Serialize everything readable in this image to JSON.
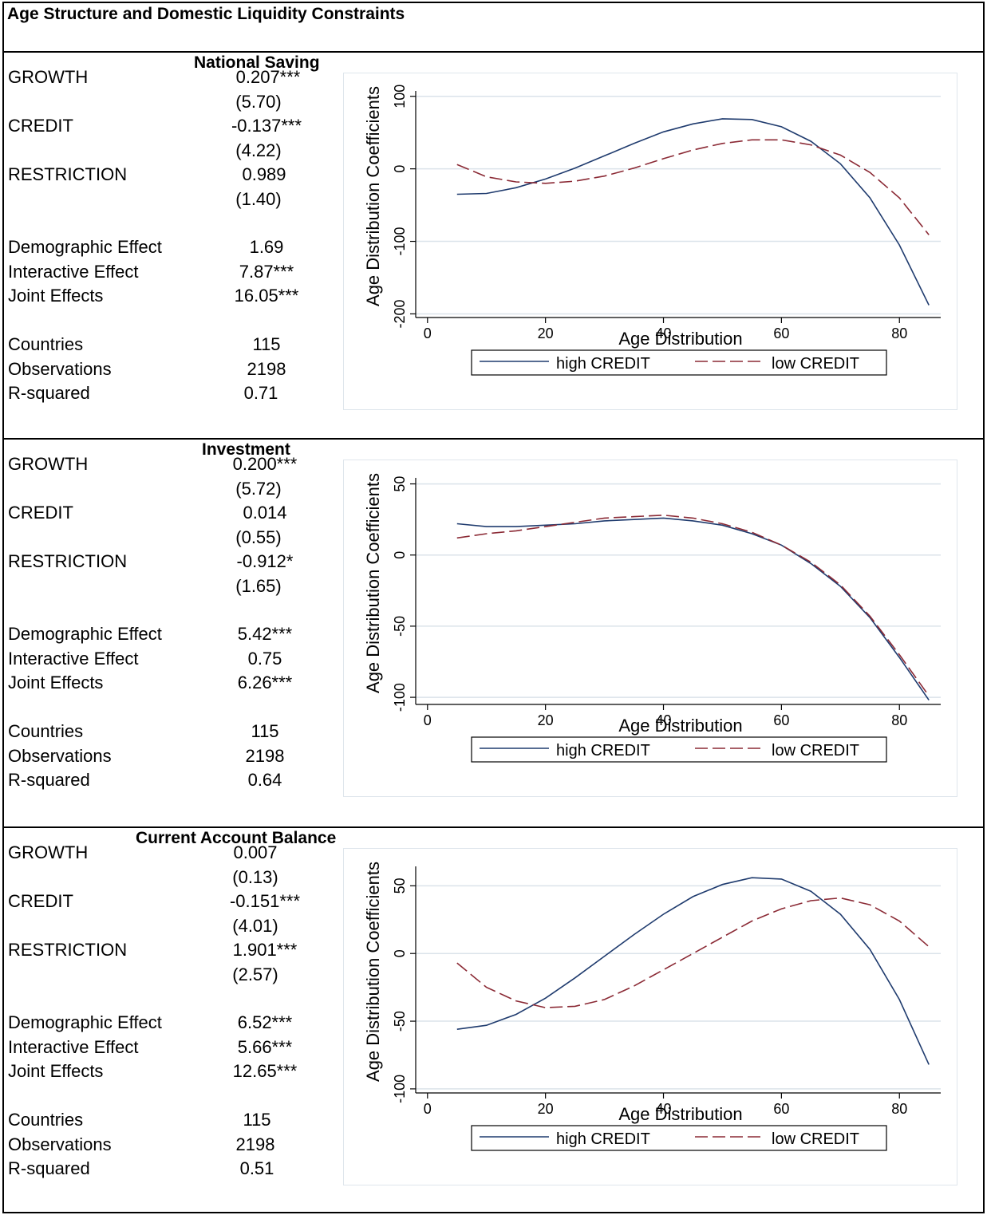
{
  "title": "Age Structure and Domestic Liquidity Constraints",
  "colors": {
    "high": "#1f3b6e",
    "low": "#8b2a35",
    "grid": "#dbe3ea",
    "frame": "#dfe6ec"
  },
  "panels": [
    {
      "title": "National Saving",
      "rows": [
        {
          "label": "GROWTH",
          "value": "0.207***"
        },
        {
          "label": "",
          "value": "(5.70)"
        },
        {
          "label": "CREDIT",
          "value": "-0.137***"
        },
        {
          "label": "",
          "value": "(4.22)"
        },
        {
          "label": "RESTRICTION",
          "value": "0.989"
        },
        {
          "label": "",
          "value": "(1.40)"
        },
        {
          "label": "Demographic  Effect",
          "value": "1.69"
        },
        {
          "label": "Interactive Effect",
          "value": "7.87***"
        },
        {
          "label": "Joint Effects",
          "value": "16.05***"
        },
        {
          "label": "Countries",
          "value": "115"
        },
        {
          "label": "Observations",
          "value": "2198"
        },
        {
          "label": "R-squared",
          "value": "0.71"
        }
      ]
    },
    {
      "title": "Investment",
      "rows": [
        {
          "label": "GROWTH",
          "value": "0.200***"
        },
        {
          "label": "",
          "value": "(5.72)"
        },
        {
          "label": "CREDIT",
          "value": "0.014"
        },
        {
          "label": "",
          "value": "(0.55)"
        },
        {
          "label": "RESTRICTION",
          "value": "-0.912*"
        },
        {
          "label": "",
          "value": "(1.65)"
        },
        {
          "label": "Demographic  Effect",
          "value": "5.42***"
        },
        {
          "label": "Interactive Effect",
          "value": "0.75"
        },
        {
          "label": "Joint Effects",
          "value": "6.26***"
        },
        {
          "label": "Countries",
          "value": "115"
        },
        {
          "label": "Observations",
          "value": "2198"
        },
        {
          "label": "R-squared",
          "value": "0.64"
        }
      ]
    },
    {
      "title": "Current Account Balance",
      "rows": [
        {
          "label": "GROWTH",
          "value": "0.007"
        },
        {
          "label": "",
          "value": "(0.13)"
        },
        {
          "label": "CREDIT",
          "value": "-0.151***"
        },
        {
          "label": "",
          "value": "(4.01)"
        },
        {
          "label": "RESTRICTION",
          "value": "1.901***"
        },
        {
          "label": "",
          "value": "(2.57)"
        },
        {
          "label": "Demographic  Effect",
          "value": "6.52***"
        },
        {
          "label": "Interactive Effect",
          "value": "5.66***"
        },
        {
          "label": "Joint Effects",
          "value": "12.65***"
        },
        {
          "label": "Countries",
          "value": "115"
        },
        {
          "label": "Observations",
          "value": "2198"
        },
        {
          "label": "R-squared",
          "value": "0.51"
        }
      ]
    }
  ],
  "chart_data": [
    {
      "type": "line",
      "xlabel": "Age Distribution",
      "ylabel": "Age Distribution Coefficients",
      "xlim": [
        -2,
        87
      ],
      "ylim": [
        -205,
        103
      ],
      "xticks": [
        0,
        20,
        40,
        60,
        80
      ],
      "yticks": [
        100,
        0,
        -100,
        -200
      ],
      "grid": true,
      "legend_position": "bottom",
      "x": [
        5,
        10,
        15,
        20,
        25,
        30,
        35,
        40,
        45,
        50,
        55,
        60,
        65,
        70,
        75,
        80,
        85
      ],
      "series": [
        {
          "name": "high CREDIT",
          "style": "solid",
          "values": [
            -35,
            -34,
            -26,
            -14,
            1,
            18,
            35,
            51,
            62,
            69,
            68,
            58,
            38,
            7,
            -40,
            -105,
            -188
          ]
        },
        {
          "name": "low CREDIT",
          "style": "dashed",
          "values": [
            6,
            -11,
            -18,
            -20,
            -17,
            -10,
            1,
            14,
            26,
            35,
            40,
            40,
            33,
            19,
            -5,
            -40,
            -91
          ]
        }
      ]
    },
    {
      "type": "line",
      "xlabel": "Age Distribution",
      "ylabel": "Age Distribution Coefficients",
      "xlim": [
        -2,
        87
      ],
      "ylim": [
        -105,
        52
      ],
      "xticks": [
        0,
        20,
        40,
        60,
        80
      ],
      "yticks": [
        50,
        0,
        -50,
        -100
      ],
      "grid": true,
      "legend_position": "bottom",
      "x": [
        5,
        10,
        15,
        20,
        25,
        30,
        35,
        40,
        45,
        50,
        55,
        60,
        65,
        70,
        75,
        80,
        85
      ],
      "series": [
        {
          "name": "high CREDIT",
          "style": "solid",
          "values": [
            22,
            20,
            20,
            21,
            22,
            24,
            25,
            26,
            24,
            21,
            15,
            7,
            -6,
            -22,
            -44,
            -72,
            -102
          ]
        },
        {
          "name": "low CREDIT",
          "style": "dashed",
          "values": [
            12,
            15,
            17,
            20,
            23,
            26,
            27,
            28,
            26,
            22,
            16,
            7,
            -5,
            -21,
            -43,
            -70,
            -99
          ]
        }
      ]
    },
    {
      "type": "line",
      "xlabel": "Age Distribution",
      "ylabel": "Age Distribution Coefficients",
      "xlim": [
        -2,
        87
      ],
      "ylim": [
        -103,
        62
      ],
      "xticks": [
        0,
        20,
        40,
        60,
        80
      ],
      "yticks": [
        50,
        0,
        -50,
        -100
      ],
      "grid": true,
      "legend_position": "bottom",
      "x": [
        5,
        10,
        15,
        20,
        25,
        30,
        35,
        40,
        45,
        50,
        55,
        60,
        65,
        70,
        75,
        80,
        85
      ],
      "series": [
        {
          "name": "high CREDIT",
          "style": "solid",
          "values": [
            -56,
            -53,
            -45,
            -33,
            -18,
            -2,
            14,
            29,
            42,
            51,
            56,
            55,
            46,
            29,
            3,
            -34,
            -82
          ]
        },
        {
          "name": "low CREDIT",
          "style": "dashed",
          "values": [
            -7,
            -25,
            -35,
            -40,
            -39,
            -34,
            -24,
            -12,
            0,
            12,
            24,
            33,
            39,
            41,
            36,
            24,
            5
          ]
        }
      ]
    }
  ]
}
